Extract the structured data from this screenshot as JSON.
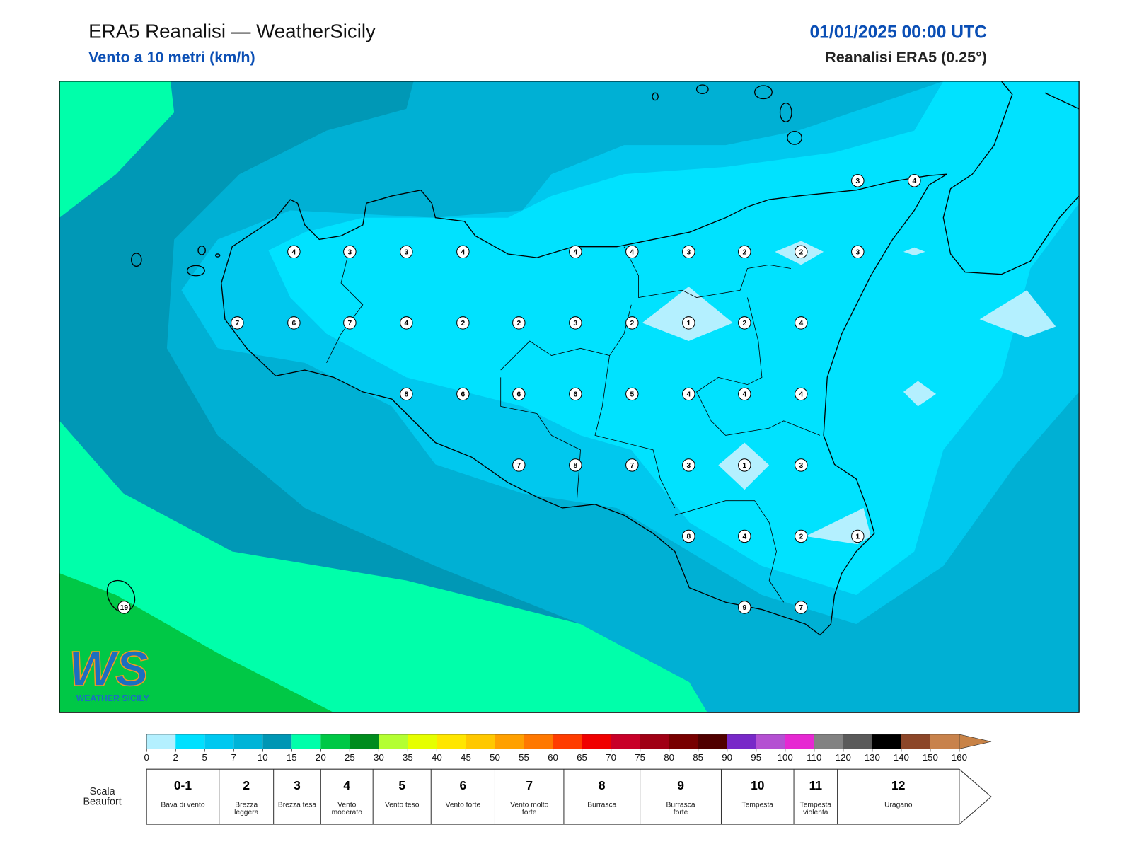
{
  "header": {
    "title": "ERA5 Reanalisi — WeatherSicily",
    "subtitle": "Vento a 10 metri (km/h)",
    "date": "01/01/2025 00:00 UTC",
    "source": "Reanalisi ERA5 (0.25°)"
  },
  "map": {
    "stations": [
      3,
      4,
      4,
      3,
      3,
      4,
      4,
      4,
      3,
      2,
      2,
      3,
      7,
      6,
      7,
      4,
      2,
      2,
      3,
      2,
      1,
      2,
      4,
      8,
      6,
      6,
      6,
      5,
      4,
      4,
      4,
      7,
      8,
      7,
      3,
      1,
      3,
      8,
      4,
      2,
      1,
      9,
      7,
      19
    ]
  },
  "logo": {
    "mark": "WS",
    "caption": "WEATHER SICILY"
  },
  "colorbar": {
    "ticks": [
      0,
      2,
      5,
      7,
      10,
      15,
      20,
      25,
      30,
      35,
      40,
      45,
      50,
      55,
      60,
      65,
      70,
      75,
      80,
      85,
      90,
      95,
      100,
      110,
      120,
      130,
      140,
      150,
      160
    ],
    "colors": [
      "#b4f0ff",
      "#00e0ff",
      "#00c8f0",
      "#00b4d8",
      "#0096b4",
      "#00ffaa",
      "#00c846",
      "#008c1e",
      "#b4ff32",
      "#e6ff00",
      "#ffe600",
      "#ffc800",
      "#ffa000",
      "#ff7800",
      "#ff3c00",
      "#f00000",
      "#c80028",
      "#a00014",
      "#780000",
      "#500000",
      "#7828c8",
      "#b450d2",
      "#e628d2",
      "#828282",
      "#5a5a5a",
      "#000000",
      "#8c4628",
      "#c8824b"
    ],
    "extend_color": "#c88246"
  },
  "beaufort": {
    "title": "Scala Beaufort",
    "levels": [
      {
        "force": "0-1",
        "label": "Bava di vento"
      },
      {
        "force": 2,
        "label": "Brezza leggera"
      },
      {
        "force": 3,
        "label": "Brezza tesa"
      },
      {
        "force": 4,
        "label": "Vento moderato"
      },
      {
        "force": 5,
        "label": "Vento teso"
      },
      {
        "force": 6,
        "label": "Vento forte"
      },
      {
        "force": 7,
        "label": "Vento molto forte"
      },
      {
        "force": 8,
        "label": "Burrasca"
      },
      {
        "force": 9,
        "label": "Burrasca forte"
      },
      {
        "force": 10,
        "label": "Tempesta"
      },
      {
        "force": 11,
        "label": "Tempesta violenta"
      },
      {
        "force": 12,
        "label": "Uragano"
      }
    ]
  }
}
